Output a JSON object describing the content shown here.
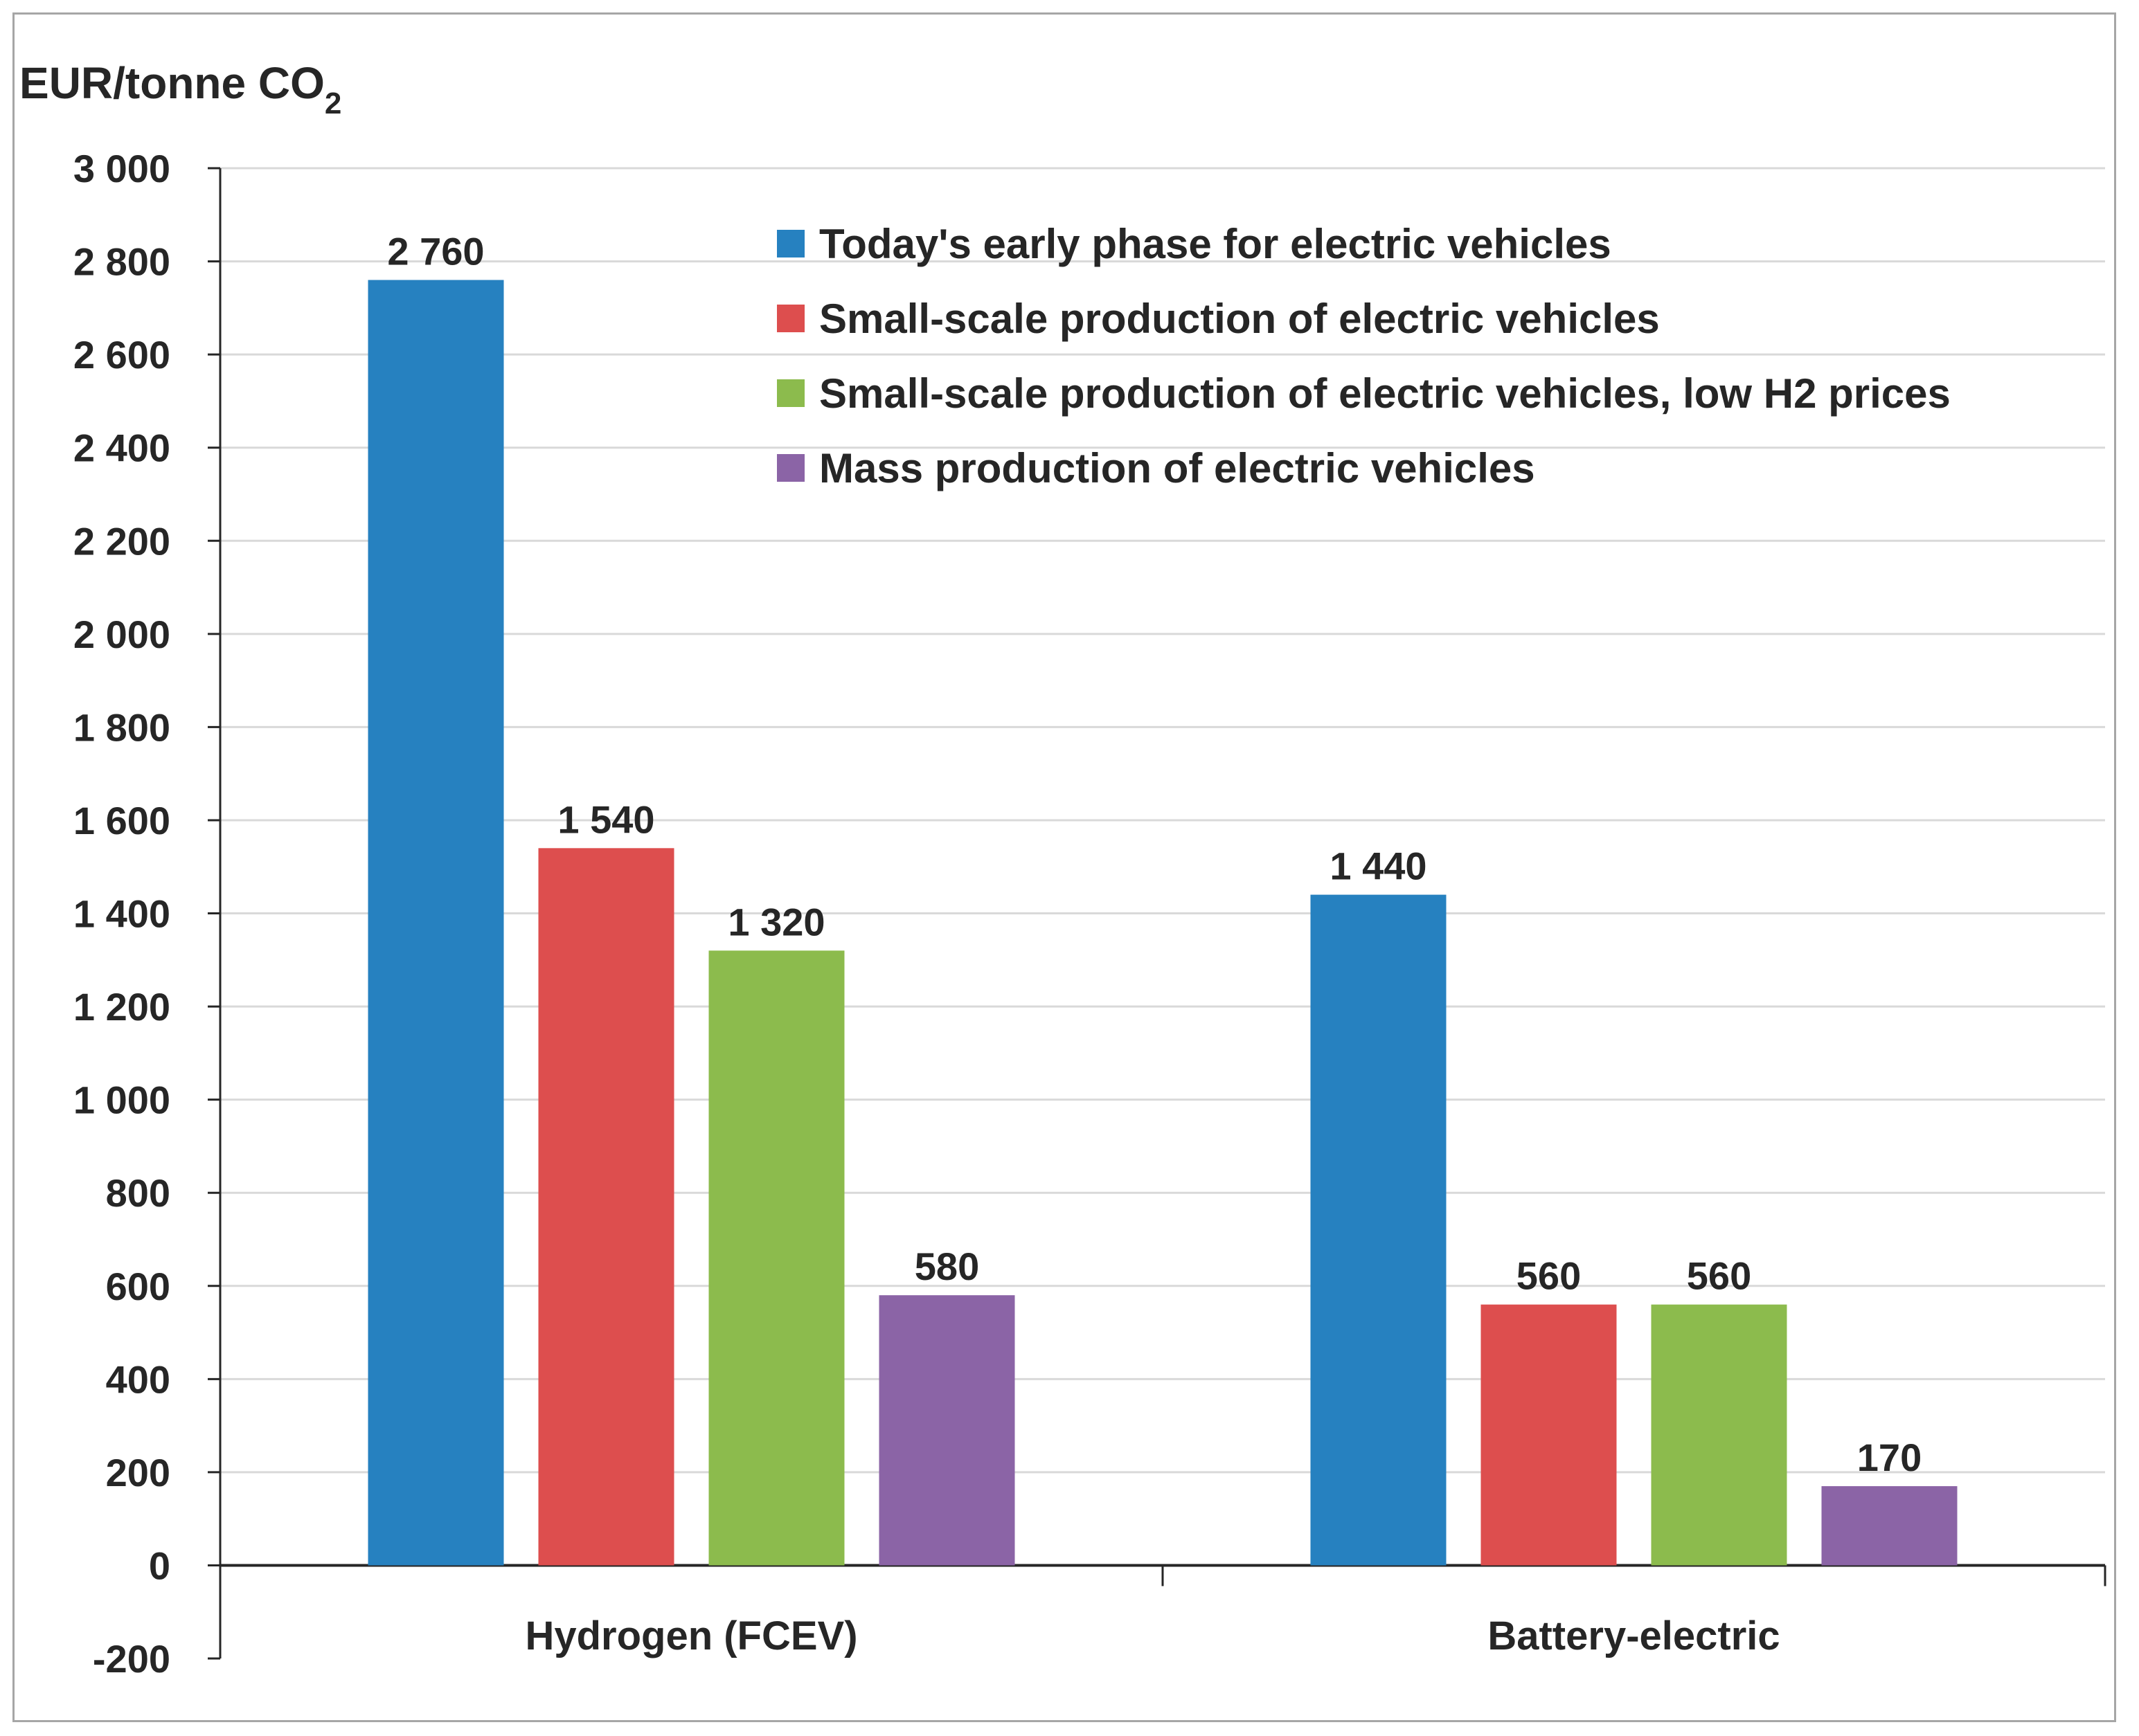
{
  "chart_data": {
    "type": "bar",
    "ylabel": "EUR/tonne CO",
    "ylabel_subscript": "2",
    "categories": [
      "Hydrogen (FCEV)",
      "Battery-electric"
    ],
    "series": [
      {
        "name": "Today's early phase for electric vehicles",
        "color": "#2681c0",
        "values": [
          2760,
          1440
        ],
        "labels": [
          "2 760",
          "1 440"
        ]
      },
      {
        "name": "Small-scale production of electric vehicles",
        "color": "#dd4e4e",
        "values": [
          1540,
          560
        ],
        "labels": [
          "1 540",
          "560"
        ]
      },
      {
        "name": "Small-scale production of electric vehicles, low H2 prices",
        "color": "#8cbb4d",
        "values": [
          1320,
          560
        ],
        "labels": [
          "1 320",
          "560"
        ]
      },
      {
        "name": "Mass production of electric vehicles",
        "color": "#8b64a6",
        "values": [
          580,
          170
        ],
        "labels": [
          "580",
          "170"
        ]
      }
    ],
    "ylim": [
      -200,
      3000
    ],
    "yticks": [
      3000,
      2800,
      2600,
      2400,
      2200,
      2000,
      1800,
      1600,
      1400,
      1200,
      1000,
      800,
      600,
      400,
      200,
      0,
      -200
    ],
    "ytick_labels": [
      "3 000",
      "2 800",
      "2 600",
      "2 400",
      "2 200",
      "2 000",
      "1 800",
      "1 600",
      "1 400",
      "1 200",
      "1 000",
      "800",
      "600",
      "400",
      "200",
      "0",
      "-200"
    ],
    "grid": true,
    "legend_position": "top-right"
  }
}
